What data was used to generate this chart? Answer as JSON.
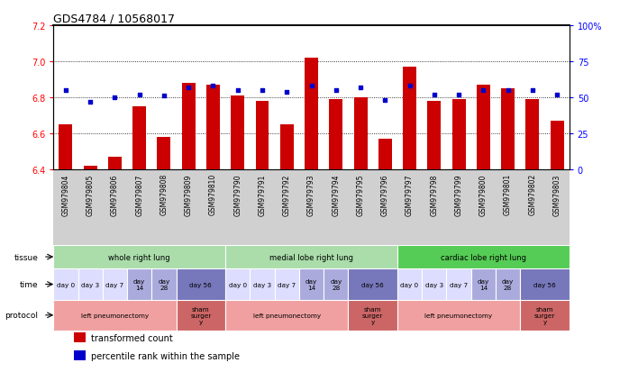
{
  "title": "GDS4784 / 10568017",
  "samples": [
    "GSM979804",
    "GSM979805",
    "GSM979806",
    "GSM979807",
    "GSM979808",
    "GSM979809",
    "GSM979810",
    "GSM979790",
    "GSM979791",
    "GSM979792",
    "GSM979793",
    "GSM979794",
    "GSM979795",
    "GSM979796",
    "GSM979797",
    "GSM979798",
    "GSM979799",
    "GSM979800",
    "GSM979801",
    "GSM979802",
    "GSM979803"
  ],
  "transformed_count": [
    6.65,
    6.42,
    6.47,
    6.75,
    6.58,
    6.88,
    6.87,
    6.81,
    6.78,
    6.65,
    7.02,
    6.79,
    6.8,
    6.57,
    6.97,
    6.78,
    6.79,
    6.87,
    6.85,
    6.79,
    6.67
  ],
  "percentile_rank": [
    55,
    47,
    50,
    52,
    51,
    57,
    58,
    55,
    55,
    54,
    58,
    55,
    57,
    48,
    58,
    52,
    52,
    55,
    55,
    55,
    52
  ],
  "bar_color": "#cc0000",
  "dot_color": "#0000cc",
  "ylim_left": [
    6.4,
    7.2
  ],
  "ylim_right": [
    0,
    100
  ],
  "yticks_left": [
    6.4,
    6.6,
    6.8,
    7.0,
    7.2
  ],
  "yticks_right": [
    0,
    25,
    50,
    75,
    100
  ],
  "ytick_labels_right": [
    "0",
    "25",
    "50",
    "75",
    "100%"
  ],
  "grid_values": [
    6.6,
    6.8,
    7.0
  ],
  "tissue_groups": [
    {
      "label": "whole right lung",
      "start": 0,
      "end": 7,
      "color": "#aaddaa"
    },
    {
      "label": "medial lobe right lung",
      "start": 7,
      "end": 14,
      "color": "#aaddaa"
    },
    {
      "label": "cardiac lobe right lung",
      "start": 14,
      "end": 21,
      "color": "#55cc55"
    }
  ],
  "time_spans": [
    {
      "label": "day 0",
      "col": 0,
      "span": 1,
      "color": "#ddddff"
    },
    {
      "label": "day 3",
      "col": 1,
      "span": 1,
      "color": "#ddddff"
    },
    {
      "label": "day 7",
      "col": 2,
      "span": 1,
      "color": "#ddddff"
    },
    {
      "label": "day\n14",
      "col": 3,
      "span": 1,
      "color": "#aaaadd"
    },
    {
      "label": "day\n28",
      "col": 4,
      "span": 1,
      "color": "#aaaadd"
    },
    {
      "label": "day 56",
      "col": 5,
      "span": 2,
      "color": "#7777bb"
    },
    {
      "label": "day 0",
      "col": 7,
      "span": 1,
      "color": "#ddddff"
    },
    {
      "label": "day 3",
      "col": 8,
      "span": 1,
      "color": "#ddddff"
    },
    {
      "label": "day 7",
      "col": 9,
      "span": 1,
      "color": "#ddddff"
    },
    {
      "label": "day\n14",
      "col": 10,
      "span": 1,
      "color": "#aaaadd"
    },
    {
      "label": "day\n28",
      "col": 11,
      "span": 1,
      "color": "#aaaadd"
    },
    {
      "label": "day 56",
      "col": 12,
      "span": 2,
      "color": "#7777bb"
    },
    {
      "label": "day 0",
      "col": 14,
      "span": 1,
      "color": "#ddddff"
    },
    {
      "label": "day 3",
      "col": 15,
      "span": 1,
      "color": "#ddddff"
    },
    {
      "label": "day 7",
      "col": 16,
      "span": 1,
      "color": "#ddddff"
    },
    {
      "label": "day\n14",
      "col": 17,
      "span": 1,
      "color": "#aaaadd"
    },
    {
      "label": "day\n28",
      "col": 18,
      "span": 1,
      "color": "#aaaadd"
    },
    {
      "label": "day 56",
      "col": 19,
      "span": 2,
      "color": "#7777bb"
    }
  ],
  "protocol_spans": [
    {
      "label": "left pneumonectomy",
      "start": 0,
      "end": 5,
      "color": "#f0a0a0"
    },
    {
      "label": "sham\nsurger\ny",
      "start": 5,
      "end": 7,
      "color": "#cc6666"
    },
    {
      "label": "left pneumonectomy",
      "start": 7,
      "end": 12,
      "color": "#f0a0a0"
    },
    {
      "label": "sham\nsurger\ny",
      "start": 12,
      "end": 14,
      "color": "#cc6666"
    },
    {
      "label": "left pneumonectomy",
      "start": 14,
      "end": 19,
      "color": "#f0a0a0"
    },
    {
      "label": "sham\nsurger\ny",
      "start": 19,
      "end": 21,
      "color": "#cc6666"
    }
  ],
  "legend_items": [
    {
      "color": "#cc0000",
      "label": "transformed count"
    },
    {
      "color": "#0000cc",
      "label": "percentile rank within the sample"
    }
  ],
  "label_row_color": "#d0d0d0"
}
